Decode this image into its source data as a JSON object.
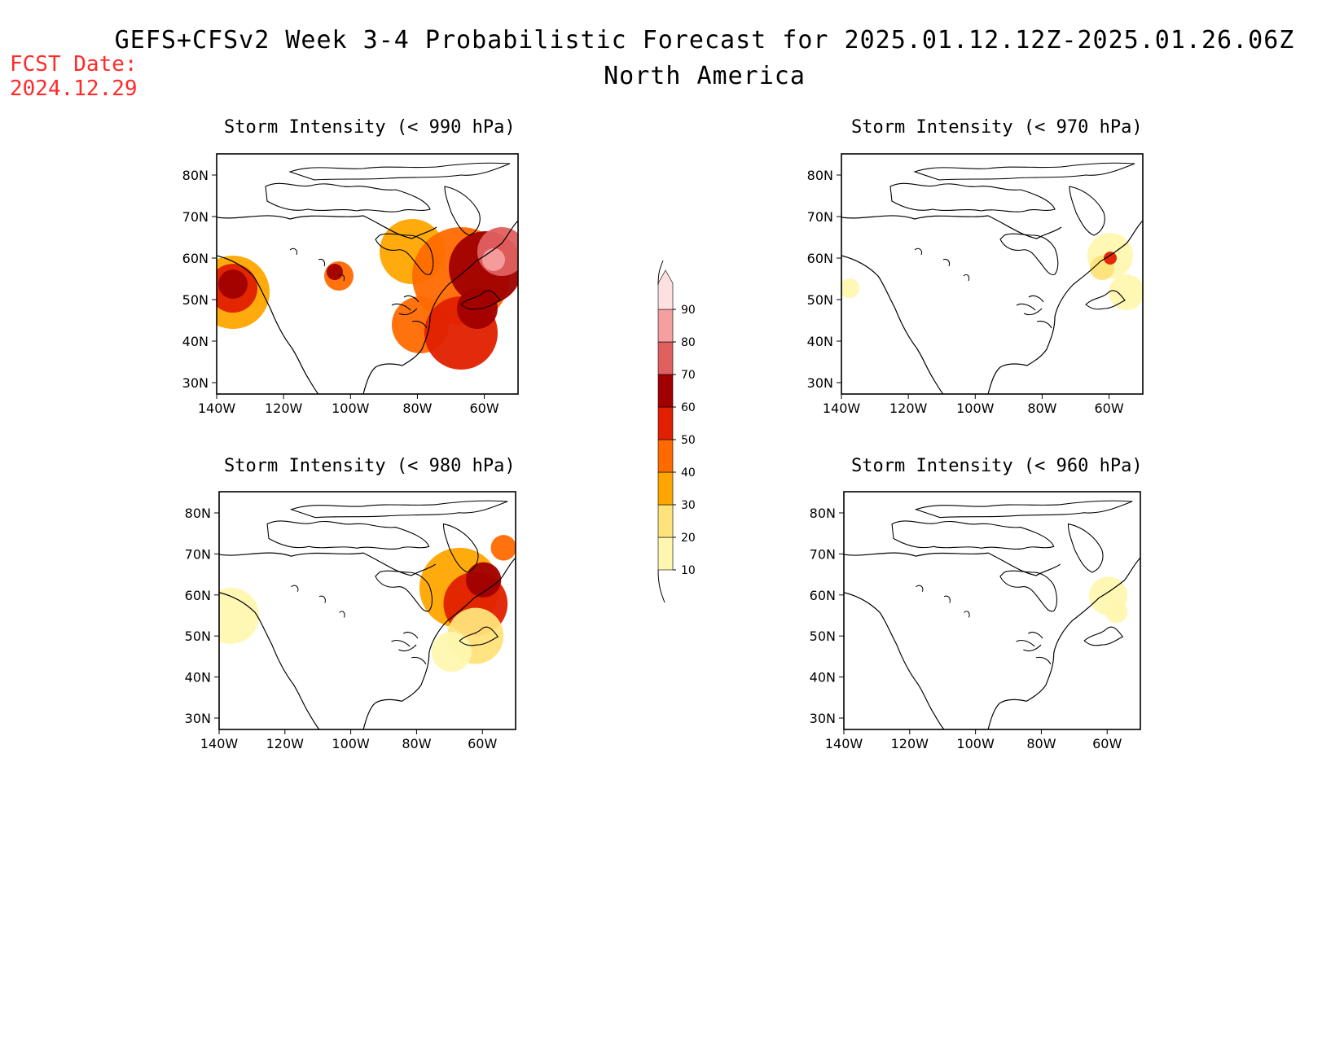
{
  "header": {
    "title": "GEFS+CFSv2 Week 3-4 Probabilistic Forecast for 2025.01.12.12Z-2025.01.26.06Z",
    "subtitle": "North America",
    "fcst_label": "FCST Date:",
    "fcst_date": "2024.12.29"
  },
  "axes": {
    "lat_ticks": [
      "80N",
      "70N",
      "60N",
      "50N",
      "40N",
      "30N"
    ],
    "lon_ticks": [
      "140W",
      "120W",
      "100W",
      "80W",
      "60W"
    ]
  },
  "chart_data": {
    "type": "heatmap",
    "colorbar": {
      "levels": [
        "10",
        "20",
        "30",
        "40",
        "50",
        "60",
        "70",
        "80",
        "90"
      ],
      "colors": [
        "#fff7b0",
        "#ffe37a",
        "#ffa500",
        "#ff6a00",
        "#e02000",
        "#a00000",
        "#e06060",
        "#f4a0a0",
        "#ffe0e0"
      ]
    },
    "panels": [
      {
        "id": "p990",
        "title": "Storm Intensity (< 990 hPa)"
      },
      {
        "id": "p970",
        "title": "Storm Intensity (< 970 hPa)"
      },
      {
        "id": "p980",
        "title": "Storm Intensity (< 980 hPa)"
      },
      {
        "id": "p960",
        "title": "Storm Intensity (< 960 hPa)"
      }
    ]
  }
}
